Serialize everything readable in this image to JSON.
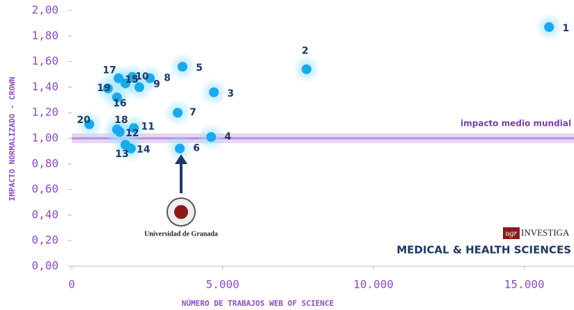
{
  "chart_data": {
    "type": "scatter",
    "x_label": "NÚMERO DE TRABAJOS WEB OF SCIENCE",
    "y_label": "IMPACTO NORMALIZADO - CROWN",
    "color": "#1aa9ec",
    "labels": [
      "1",
      "2",
      "3",
      "4",
      "5",
      "6",
      "7",
      "8",
      "9",
      "10",
      "11",
      "12",
      "13",
      "14",
      "15",
      "16",
      "17",
      "18",
      "19",
      "20"
    ],
    "x": [
      15820,
      7780,
      4710,
      4620,
      3670,
      3580,
      3510,
      2590,
      2240,
      2010,
      2060,
      1590,
      1780,
      1960,
      1780,
      1500,
      1550,
      1500,
      1200,
      580
    ],
    "values": [
      1.87,
      1.54,
      1.36,
      1.01,
      1.56,
      0.92,
      1.2,
      1.47,
      1.4,
      1.48,
      1.08,
      1.05,
      0.95,
      0.92,
      1.43,
      1.32,
      1.47,
      1.07,
      1.39,
      1.11
    ],
    "xlim": [
      0,
      16600
    ],
    "ylim": [
      0,
      2
    ],
    "xticks": [
      {
        "value": 0,
        "label": "0"
      },
      {
        "value": 5000,
        "label": "5.000"
      },
      {
        "value": 10000,
        "label": "10.000"
      },
      {
        "value": 15000,
        "label": "15.000"
      }
    ],
    "yticks": [
      {
        "value": 0,
        "label": "0,00"
      },
      {
        "value": 0.2,
        "label": "0,20"
      },
      {
        "value": 0.4,
        "label": "0,40"
      },
      {
        "value": 0.6,
        "label": "0,60"
      },
      {
        "value": 0.8,
        "label": "0,80"
      },
      {
        "value": 1,
        "label": "1,00"
      },
      {
        "value": 1.2,
        "label": "1,20"
      },
      {
        "value": 1.4,
        "label": "1,40"
      },
      {
        "value": 1.6,
        "label": "1,60"
      },
      {
        "value": 1.8,
        "label": "1,80"
      },
      {
        "value": 2,
        "label": "2,00"
      }
    ],
    "reference_line": {
      "value": 1,
      "label": "impacto medio mundial"
    },
    "annotations": [
      "Universidad de Granada",
      "ugr",
      "INVESTIGA",
      "MEDICAL & HEALTH SCIENCES"
    ]
  }
}
